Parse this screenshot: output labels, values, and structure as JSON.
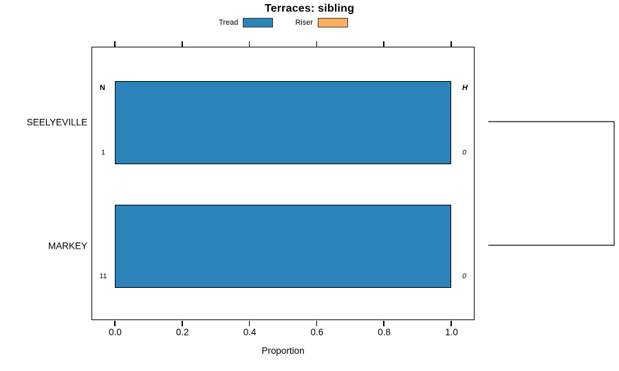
{
  "title": "Terraces: sibling",
  "legend": {
    "items": [
      {
        "label": "Tread",
        "color": "#2B83BA"
      },
      {
        "label": "Riser",
        "color": "#FDAE61"
      }
    ]
  },
  "x_axis": {
    "label": "Proportion",
    "tick_labels": [
      "0.0",
      "0.2",
      "0.4",
      "0.6",
      "0.8",
      "1.0"
    ]
  },
  "chart_data": {
    "type": "bar",
    "orientation": "horizontal",
    "stacked": true,
    "title": "Terraces: sibling",
    "xlabel": "Proportion",
    "ylabel": "",
    "xlim": [
      -0.07,
      1.07
    ],
    "x_tick_labels": [
      "0.0",
      "0.2",
      "0.4",
      "0.6",
      "0.8",
      "1.0"
    ],
    "grid": false,
    "legend_position": "top",
    "categories": [
      "SEELYEVILLE",
      "MARKEY"
    ],
    "series": [
      {
        "name": "Tread",
        "color": "#2B83BA",
        "values": [
          1.0,
          1.0
        ]
      },
      {
        "name": "Riser",
        "color": "#FDAE61",
        "values": [
          0.0,
          0.0
        ]
      }
    ],
    "rows": [
      {
        "category": "SEELYEVILLE",
        "left_header": "N",
        "left_value": "1",
        "right_header": "H",
        "right_value": "0"
      },
      {
        "category": "MARKEY",
        "left_header": "",
        "left_value": "11",
        "right_header": "",
        "right_value": "0"
      }
    ],
    "right_bracket": {
      "connects": [
        "SEELYEVILLE",
        "MARKEY"
      ],
      "color": "#2e2e2e"
    }
  }
}
